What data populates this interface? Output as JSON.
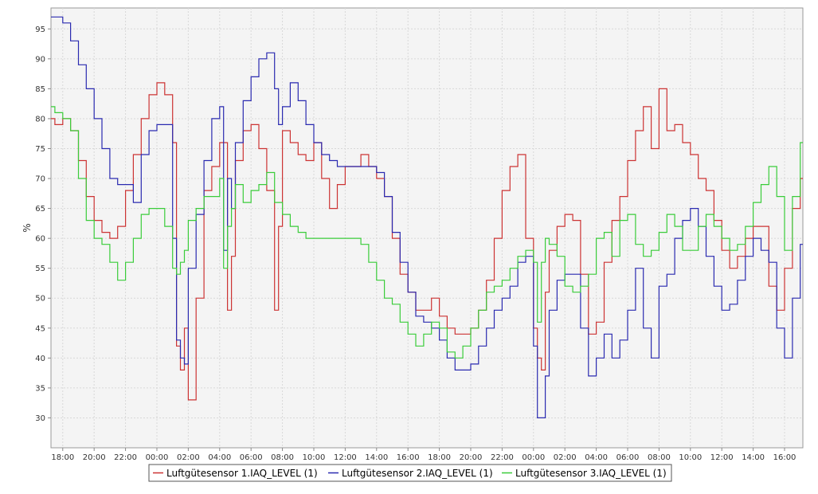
{
  "chart_data": {
    "type": "line",
    "title": "",
    "xlabel": "",
    "ylabel": "%",
    "ylim": [
      25,
      98.5
    ],
    "xlim": [
      "17:15",
      "17:10 +2d"
    ],
    "grid": true,
    "legend_position": "bottom",
    "x_tick_labels": [
      "18:00",
      "20:00",
      "22:00",
      "00:00",
      "02:00",
      "04:00",
      "06:00",
      "08:00",
      "10:00",
      "12:00",
      "14:00",
      "16:00",
      "18:00",
      "20:00",
      "22:00",
      "00:00",
      "02:00",
      "04:00",
      "06:00",
      "08:00",
      "10:00",
      "12:00",
      "14:00",
      "16:00"
    ],
    "y_ticks": [
      30,
      35,
      40,
      45,
      50,
      55,
      60,
      65,
      70,
      75,
      80,
      85,
      90,
      95
    ],
    "x": [
      "17:15",
      "17:30",
      "18:00",
      "18:30",
      "19:00",
      "19:30",
      "20:00",
      "20:30",
      "21:00",
      "21:30",
      "22:00",
      "22:30",
      "23:00",
      "23:30",
      "00:00",
      "00:30",
      "01:00",
      "01:15",
      "01:30",
      "01:45",
      "02:00",
      "02:30",
      "03:00",
      "03:30",
      "04:00",
      "04:15",
      "04:30",
      "04:45",
      "05:00",
      "05:30",
      "06:00",
      "06:30",
      "07:00",
      "07:30",
      "07:45",
      "08:00",
      "08:30",
      "09:00",
      "09:30",
      "10:00",
      "10:30",
      "11:00",
      "11:30",
      "12:00",
      "12:30",
      "13:00",
      "13:30",
      "14:00",
      "14:30",
      "15:00",
      "15:30",
      "16:00",
      "16:30",
      "17:00",
      "17:30",
      "18:00",
      "18:30",
      "19:00",
      "19:30",
      "20:00",
      "20:30",
      "21:00",
      "21:30",
      "22:00",
      "22:30",
      "23:00",
      "23:30",
      "00:00",
      "00:15",
      "00:30",
      "00:45",
      "01:00",
      "01:30",
      "02:00",
      "02:30",
      "03:00",
      "03:30",
      "04:00",
      "04:30",
      "05:00",
      "05:30",
      "06:00",
      "06:30",
      "07:00",
      "07:30",
      "08:00",
      "08:30",
      "09:00",
      "09:30",
      "10:00",
      "10:30",
      "11:00",
      "11:30",
      "12:00",
      "12:30",
      "13:00",
      "13:30",
      "14:00",
      "14:30",
      "15:00",
      "15:30",
      "16:00",
      "16:30",
      "17:00"
    ],
    "series": [
      {
        "name": "Luftgütesensor 1.IAQ_LEVEL (1)",
        "color": "#cc3333",
        "values": [
          80,
          79,
          80,
          78,
          73,
          67,
          63,
          61,
          60,
          62,
          68,
          74,
          80,
          84,
          86,
          84,
          76,
          42,
          38,
          45,
          33,
          50,
          68,
          72,
          76,
          76,
          48,
          57,
          73,
          78,
          79,
          75,
          68,
          48,
          62,
          78,
          76,
          74,
          73,
          76,
          70,
          65,
          69,
          72,
          72,
          74,
          72,
          70,
          67,
          60,
          54,
          51,
          48,
          48,
          50,
          47,
          45,
          44,
          44,
          45,
          48,
          53,
          60,
          68,
          72,
          74,
          60,
          45,
          40,
          38,
          51,
          58,
          62,
          64,
          63,
          54,
          44,
          46,
          56,
          63,
          67,
          73,
          78,
          82,
          75,
          85,
          78,
          79,
          76,
          74,
          70,
          68,
          63,
          58,
          55,
          57,
          60,
          62,
          62,
          52,
          48,
          55,
          65,
          70
        ]
      },
      {
        "name": "Luftgütesensor 2.IAQ_LEVEL (1)",
        "color": "#2a2ab0",
        "values": [
          97,
          97,
          96,
          93,
          89,
          85,
          80,
          75,
          70,
          69,
          69,
          66,
          74,
          78,
          79,
          79,
          60,
          43,
          40,
          39,
          55,
          64,
          73,
          80,
          82,
          58,
          70,
          65,
          76,
          83,
          87,
          90,
          91,
          85,
          79,
          82,
          86,
          83,
          79,
          76,
          74,
          73,
          72,
          72,
          72,
          72,
          72,
          71,
          67,
          61,
          56,
          51,
          47,
          46,
          45,
          43,
          40,
          38,
          38,
          39,
          42,
          45,
          48,
          50,
          52,
          56,
          57,
          42,
          30,
          30,
          37,
          48,
          53,
          54,
          54,
          45,
          37,
          40,
          44,
          40,
          43,
          48,
          55,
          45,
          40,
          52,
          54,
          60,
          63,
          65,
          62,
          57,
          52,
          48,
          49,
          53,
          57,
          60,
          58,
          56,
          45,
          40,
          50,
          59
        ]
      },
      {
        "name": "Luftgütesensor 3.IAQ_LEVEL (1)",
        "color": "#3acc3a",
        "values": [
          82,
          81,
          80,
          78,
          70,
          63,
          60,
          59,
          56,
          53,
          56,
          60,
          64,
          65,
          65,
          62,
          55,
          54,
          56,
          58,
          63,
          65,
          67,
          67,
          70,
          55,
          62,
          65,
          69,
          66,
          68,
          69,
          71,
          66,
          66,
          64,
          62,
          61,
          60,
          60,
          60,
          60,
          60,
          60,
          60,
          59,
          56,
          53,
          50,
          49,
          46,
          44,
          42,
          44,
          46,
          45,
          41,
          40,
          42,
          45,
          48,
          51,
          52,
          53,
          55,
          57,
          58,
          56,
          46,
          56,
          60,
          59,
          57,
          52,
          51,
          52,
          54,
          60,
          61,
          57,
          63,
          64,
          59,
          57,
          58,
          61,
          64,
          62,
          58,
          58,
          62,
          64,
          62,
          60,
          58,
          59,
          62,
          66,
          69,
          72,
          67,
          58,
          67,
          76
        ]
      }
    ]
  },
  "legend": [
    {
      "label": "Luftgütesensor 1.IAQ_LEVEL (1)",
      "color": "#cc3333"
    },
    {
      "label": "Luftgütesensor 2.IAQ_LEVEL (1)",
      "color": "#2a2ab0"
    },
    {
      "label": "Luftgütesensor 3.IAQ_LEVEL (1)",
      "color": "#3acc3a"
    }
  ],
  "colors": {
    "plot_background": "#f4f4f4",
    "grid": "#d8d8d8",
    "axis": "#999999"
  }
}
